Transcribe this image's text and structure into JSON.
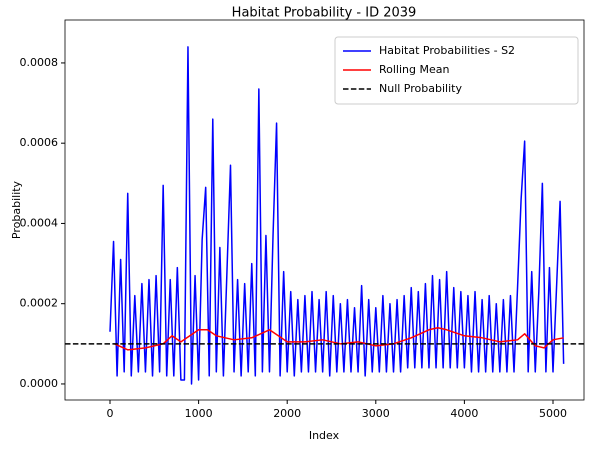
{
  "chart_data": {
    "type": "line",
    "title": "Habitat Probability - ID 2039",
    "x_label": "Index",
    "y_label": "Probability",
    "xlim": [
      -508,
      5350
    ],
    "ylim": [
      -4e-05,
      0.000907
    ],
    "xticks": [
      0,
      1000,
      2000,
      3000,
      4000,
      5000
    ],
    "yticks": [
      {
        "value": 0,
        "label": "0.0000"
      },
      {
        "value": 0.0002,
        "label": "0.0002"
      },
      {
        "value": 0.0004,
        "label": "0.0004"
      },
      {
        "value": 0.0006,
        "label": "0.0006"
      },
      {
        "value": 0.0008,
        "label": "0.0008"
      }
    ],
    "legend": "upper right",
    "series": [
      {
        "name": "Habitat Probabilities - S2",
        "color": "#0000ff",
        "width": 1.5,
        "x": [
          0,
          40,
          80,
          120,
          160,
          200,
          240,
          280,
          320,
          360,
          400,
          440,
          480,
          520,
          560,
          600,
          640,
          680,
          720,
          760,
          800,
          840,
          880,
          920,
          960,
          1000,
          1040,
          1080,
          1120,
          1160,
          1200,
          1240,
          1280,
          1320,
          1360,
          1400,
          1440,
          1480,
          1520,
          1560,
          1600,
          1640,
          1680,
          1720,
          1760,
          1800,
          1840,
          1880,
          1920,
          1960,
          2000,
          2040,
          2080,
          2120,
          2160,
          2200,
          2240,
          2280,
          2320,
          2360,
          2400,
          2440,
          2480,
          2520,
          2560,
          2600,
          2640,
          2680,
          2720,
          2760,
          2800,
          2840,
          2880,
          2920,
          2960,
          3000,
          3040,
          3080,
          3120,
          3160,
          3200,
          3240,
          3280,
          3320,
          3360,
          3400,
          3440,
          3480,
          3520,
          3560,
          3600,
          3640,
          3680,
          3720,
          3760,
          3800,
          3840,
          3880,
          3920,
          3960,
          4000,
          4040,
          4080,
          4120,
          4160,
          4200,
          4240,
          4280,
          4320,
          4360,
          4400,
          4440,
          4480,
          4520,
          4560,
          4600,
          4640,
          4680,
          4720,
          4760,
          4800,
          4840,
          4880,
          4920,
          4960,
          5000,
          5040,
          5080,
          5120
        ],
        "values": [
          0.00013,
          0.000355,
          2e-05,
          0.00031,
          3e-05,
          0.000475,
          2e-05,
          0.00022,
          3e-05,
          0.00025,
          3e-05,
          0.00026,
          2e-05,
          0.00027,
          3e-05,
          0.000495,
          2e-05,
          0.00026,
          2e-05,
          0.00029,
          1e-05,
          1e-05,
          0.00084,
          0,
          0.00027,
          1e-05,
          0.00036,
          0.00049,
          2e-05,
          0.00066,
          3e-05,
          0.00034,
          2e-05,
          0.00028,
          0.000545,
          3e-05,
          0.00026,
          2e-05,
          0.00025,
          3e-05,
          0.0003,
          2e-05,
          0.000735,
          3e-05,
          0.00037,
          3e-05,
          0.00037,
          0.00065,
          2e-05,
          0.00028,
          3e-05,
          0.00023,
          2e-05,
          0.00021,
          3e-05,
          0.00022,
          3e-05,
          0.00023,
          3e-05,
          0.00021,
          3e-05,
          0.00023,
          2e-05,
          0.00022,
          3e-05,
          0.0002,
          3e-05,
          0.00021,
          3e-05,
          0.00019,
          3e-05,
          0.000245,
          2e-05,
          0.00021,
          3e-05,
          0.00019,
          3e-05,
          0.00022,
          3e-05,
          0.0002,
          3e-05,
          0.00021,
          3e-05,
          0.00022,
          4e-05,
          0.00024,
          4e-05,
          0.00023,
          4e-05,
          0.00025,
          4e-05,
          0.00027,
          4e-05,
          0.00026,
          4e-05,
          0.00028,
          4e-05,
          0.00024,
          4e-05,
          0.00023,
          4e-05,
          0.00022,
          3e-05,
          0.00023,
          3e-05,
          0.00021,
          3e-05,
          0.00022,
          3e-05,
          0.0002,
          3e-05,
          0.00021,
          3e-05,
          0.00022,
          3e-05,
          0.00024,
          0.00046,
          0.000605,
          3e-05,
          0.00028,
          3e-05,
          0.00023,
          0.0005,
          3e-05,
          0.00029,
          3e-05,
          0.00024,
          0.000455,
          5e-05
        ]
      },
      {
        "name": "Rolling Mean",
        "color": "#ff0000",
        "width": 1.5,
        "x": [
          50,
          200,
          400,
          600,
          700,
          800,
          1000,
          1100,
          1200,
          1400,
          1600,
          1800,
          1900,
          2000,
          2200,
          2400,
          2600,
          2800,
          3000,
          3200,
          3400,
          3600,
          3700,
          3800,
          4000,
          4200,
          4400,
          4600,
          4680,
          4800,
          4900,
          5000,
          5120
        ],
        "values": [
          0.0001,
          8.5e-05,
          9e-05,
          0.0001,
          0.00012,
          0.000105,
          0.000135,
          0.000135,
          0.00012,
          0.00011,
          0.000115,
          0.000135,
          0.00012,
          0.000105,
          0.000105,
          0.00011,
          0.0001,
          0.000105,
          9.5e-05,
          0.0001,
          0.000115,
          0.000135,
          0.00014,
          0.000135,
          0.00012,
          0.000115,
          0.000105,
          0.00011,
          0.000125,
          9.5e-05,
          9e-05,
          0.00011,
          0.000115
        ]
      }
    ],
    "hlines": [
      {
        "name": "Null Probability",
        "value": 0.0001,
        "color": "#000000",
        "dash": true
      }
    ]
  }
}
